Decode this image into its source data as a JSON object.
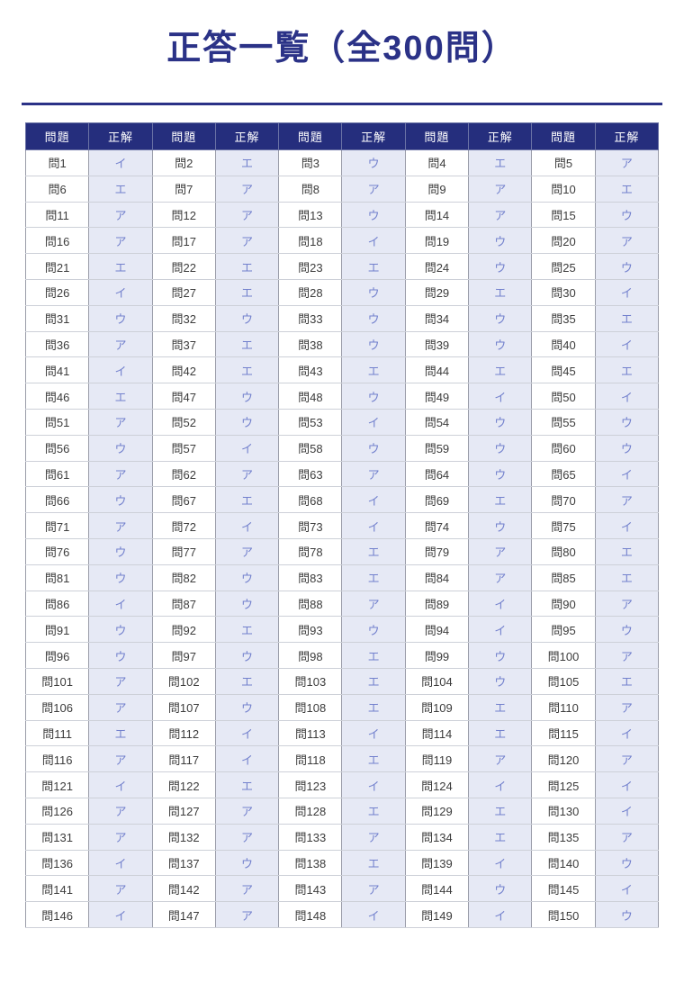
{
  "title": "正答一覧（全300問）",
  "colors": {
    "accent_navy": "#2b3287",
    "header_bg": "#252e7d",
    "header_text": "#ffffff",
    "answer_cell_bg": "#e6e9f5",
    "answer_text": "#7381cd",
    "question_text": "#3c3c3c"
  },
  "table": {
    "header_labels": [
      "問題",
      "正解",
      "問題",
      "正解",
      "問題",
      "正解",
      "問題",
      "正解",
      "問題",
      "正解"
    ],
    "rows": [
      [
        [
          "問1",
          "イ"
        ],
        [
          "問2",
          "エ"
        ],
        [
          "問3",
          "ウ"
        ],
        [
          "問4",
          "エ"
        ],
        [
          "問5",
          "ア"
        ]
      ],
      [
        [
          "問6",
          "エ"
        ],
        [
          "問7",
          "ア"
        ],
        [
          "問8",
          "ア"
        ],
        [
          "問9",
          "ア"
        ],
        [
          "問10",
          "エ"
        ]
      ],
      [
        [
          "問11",
          "ア"
        ],
        [
          "問12",
          "ア"
        ],
        [
          "問13",
          "ウ"
        ],
        [
          "問14",
          "ア"
        ],
        [
          "問15",
          "ウ"
        ]
      ],
      [
        [
          "問16",
          "ア"
        ],
        [
          "問17",
          "ア"
        ],
        [
          "問18",
          "イ"
        ],
        [
          "問19",
          "ウ"
        ],
        [
          "問20",
          "ア"
        ]
      ],
      [
        [
          "問21",
          "エ"
        ],
        [
          "問22",
          "エ"
        ],
        [
          "問23",
          "エ"
        ],
        [
          "問24",
          "ウ"
        ],
        [
          "問25",
          "ウ"
        ]
      ],
      [
        [
          "問26",
          "イ"
        ],
        [
          "問27",
          "エ"
        ],
        [
          "問28",
          "ウ"
        ],
        [
          "問29",
          "エ"
        ],
        [
          "問30",
          "イ"
        ]
      ],
      [
        [
          "問31",
          "ウ"
        ],
        [
          "問32",
          "ウ"
        ],
        [
          "問33",
          "ウ"
        ],
        [
          "問34",
          "ウ"
        ],
        [
          "問35",
          "エ"
        ]
      ],
      [
        [
          "問36",
          "ア"
        ],
        [
          "問37",
          "エ"
        ],
        [
          "問38",
          "ウ"
        ],
        [
          "問39",
          "ウ"
        ],
        [
          "問40",
          "イ"
        ]
      ],
      [
        [
          "問41",
          "イ"
        ],
        [
          "問42",
          "エ"
        ],
        [
          "問43",
          "エ"
        ],
        [
          "問44",
          "エ"
        ],
        [
          "問45",
          "エ"
        ]
      ],
      [
        [
          "問46",
          "エ"
        ],
        [
          "問47",
          "ウ"
        ],
        [
          "問48",
          "ウ"
        ],
        [
          "問49",
          "イ"
        ],
        [
          "問50",
          "イ"
        ]
      ],
      [
        [
          "問51",
          "ア"
        ],
        [
          "問52",
          "ウ"
        ],
        [
          "問53",
          "イ"
        ],
        [
          "問54",
          "ウ"
        ],
        [
          "問55",
          "ウ"
        ]
      ],
      [
        [
          "問56",
          "ウ"
        ],
        [
          "問57",
          "イ"
        ],
        [
          "問58",
          "ウ"
        ],
        [
          "問59",
          "ウ"
        ],
        [
          "問60",
          "ウ"
        ]
      ],
      [
        [
          "問61",
          "ア"
        ],
        [
          "問62",
          "ア"
        ],
        [
          "問63",
          "ア"
        ],
        [
          "問64",
          "ウ"
        ],
        [
          "問65",
          "イ"
        ]
      ],
      [
        [
          "問66",
          "ウ"
        ],
        [
          "問67",
          "エ"
        ],
        [
          "問68",
          "イ"
        ],
        [
          "問69",
          "エ"
        ],
        [
          "問70",
          "ア"
        ]
      ],
      [
        [
          "問71",
          "ア"
        ],
        [
          "問72",
          "イ"
        ],
        [
          "問73",
          "イ"
        ],
        [
          "問74",
          "ウ"
        ],
        [
          "問75",
          "イ"
        ]
      ],
      [
        [
          "問76",
          "ウ"
        ],
        [
          "問77",
          "ア"
        ],
        [
          "問78",
          "エ"
        ],
        [
          "問79",
          "ア"
        ],
        [
          "問80",
          "エ"
        ]
      ],
      [
        [
          "問81",
          "ウ"
        ],
        [
          "問82",
          "ウ"
        ],
        [
          "問83",
          "エ"
        ],
        [
          "問84",
          "ア"
        ],
        [
          "問85",
          "エ"
        ]
      ],
      [
        [
          "問86",
          "イ"
        ],
        [
          "問87",
          "ウ"
        ],
        [
          "問88",
          "ア"
        ],
        [
          "問89",
          "イ"
        ],
        [
          "問90",
          "ア"
        ]
      ],
      [
        [
          "問91",
          "ウ"
        ],
        [
          "問92",
          "エ"
        ],
        [
          "問93",
          "ウ"
        ],
        [
          "問94",
          "イ"
        ],
        [
          "問95",
          "ウ"
        ]
      ],
      [
        [
          "問96",
          "ウ"
        ],
        [
          "問97",
          "ウ"
        ],
        [
          "問98",
          "エ"
        ],
        [
          "問99",
          "ウ"
        ],
        [
          "問100",
          "ア"
        ]
      ],
      [
        [
          "問101",
          "ア"
        ],
        [
          "問102",
          "エ"
        ],
        [
          "問103",
          "エ"
        ],
        [
          "問104",
          "ウ"
        ],
        [
          "問105",
          "エ"
        ]
      ],
      [
        [
          "問106",
          "ア"
        ],
        [
          "問107",
          "ウ"
        ],
        [
          "問108",
          "エ"
        ],
        [
          "問109",
          "エ"
        ],
        [
          "問110",
          "ア"
        ]
      ],
      [
        [
          "問111",
          "エ"
        ],
        [
          "問112",
          "イ"
        ],
        [
          "問113",
          "イ"
        ],
        [
          "問114",
          "エ"
        ],
        [
          "問115",
          "イ"
        ]
      ],
      [
        [
          "問116",
          "ア"
        ],
        [
          "問117",
          "イ"
        ],
        [
          "問118",
          "エ"
        ],
        [
          "問119",
          "ア"
        ],
        [
          "問120",
          "ア"
        ]
      ],
      [
        [
          "問121",
          "イ"
        ],
        [
          "問122",
          "エ"
        ],
        [
          "問123",
          "イ"
        ],
        [
          "問124",
          "イ"
        ],
        [
          "問125",
          "イ"
        ]
      ],
      [
        [
          "問126",
          "ア"
        ],
        [
          "問127",
          "ア"
        ],
        [
          "問128",
          "エ"
        ],
        [
          "問129",
          "エ"
        ],
        [
          "問130",
          "イ"
        ]
      ],
      [
        [
          "問131",
          "ア"
        ],
        [
          "問132",
          "ア"
        ],
        [
          "問133",
          "ア"
        ],
        [
          "問134",
          "エ"
        ],
        [
          "問135",
          "ア"
        ]
      ],
      [
        [
          "問136",
          "イ"
        ],
        [
          "問137",
          "ウ"
        ],
        [
          "問138",
          "エ"
        ],
        [
          "問139",
          "イ"
        ],
        [
          "問140",
          "ウ"
        ]
      ],
      [
        [
          "問141",
          "ア"
        ],
        [
          "問142",
          "ア"
        ],
        [
          "問143",
          "ア"
        ],
        [
          "問144",
          "ウ"
        ],
        [
          "問145",
          "イ"
        ]
      ],
      [
        [
          "問146",
          "イ"
        ],
        [
          "問147",
          "ア"
        ],
        [
          "問148",
          "イ"
        ],
        [
          "問149",
          "イ"
        ],
        [
          "問150",
          "ウ"
        ]
      ]
    ]
  }
}
